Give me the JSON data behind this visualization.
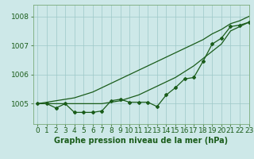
{
  "title": "Graphe pression niveau de la mer (hPa)",
  "bg_color": "#cde8e8",
  "grid_color": "#9dc8c8",
  "line_color": "#1a5c1a",
  "line_color2": "#1a5c1a",
  "xlim": [
    -0.5,
    23
  ],
  "ylim": [
    1004.3,
    1008.4
  ],
  "yticks": [
    1005,
    1006,
    1007,
    1008
  ],
  "xticks": [
    0,
    1,
    2,
    3,
    4,
    5,
    6,
    7,
    8,
    9,
    10,
    11,
    12,
    13,
    14,
    15,
    16,
    17,
    18,
    19,
    20,
    21,
    22,
    23
  ],
  "hours": [
    0,
    1,
    2,
    3,
    4,
    5,
    6,
    7,
    8,
    9,
    10,
    11,
    12,
    13,
    14,
    15,
    16,
    17,
    18,
    19,
    20,
    21,
    22,
    23
  ],
  "series1": [
    1005.0,
    1005.0,
    1004.85,
    1005.0,
    1004.7,
    1004.7,
    1004.7,
    1004.75,
    1005.1,
    1005.15,
    1005.05,
    1005.05,
    1005.05,
    1004.9,
    1005.3,
    1005.55,
    1005.85,
    1005.9,
    1006.45,
    1007.05,
    1007.25,
    1007.65,
    1007.7,
    1007.8
  ],
  "series2": [
    1005.0,
    1005.05,
    1005.1,
    1005.15,
    1005.2,
    1005.3,
    1005.4,
    1005.55,
    1005.7,
    1005.85,
    1006.0,
    1006.15,
    1006.3,
    1006.45,
    1006.6,
    1006.75,
    1006.9,
    1007.05,
    1007.2,
    1007.4,
    1007.55,
    1007.75,
    1007.85,
    1008.0
  ],
  "series3": [
    1005.0,
    1005.0,
    1005.0,
    1005.0,
    1005.0,
    1005.0,
    1005.0,
    1005.0,
    1005.05,
    1005.1,
    1005.2,
    1005.3,
    1005.45,
    1005.6,
    1005.75,
    1005.9,
    1006.1,
    1006.3,
    1006.55,
    1006.8,
    1007.05,
    1007.5,
    1007.65,
    1007.8
  ],
  "xlabel_fontsize": 6.5,
  "ylabel_fontsize": 6.5,
  "title_fontsize": 7,
  "marker_size": 2.0,
  "line_width": 0.9
}
